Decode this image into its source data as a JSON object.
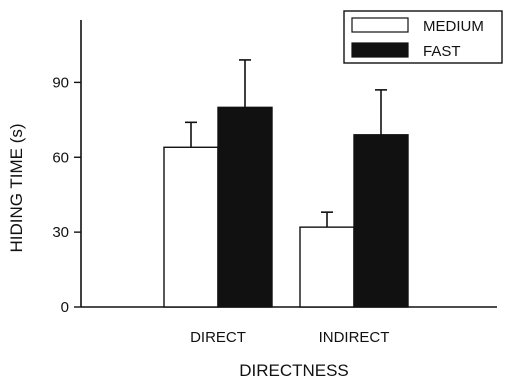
{
  "chart_data": {
    "type": "bar",
    "title": "",
    "xlabel": "DIRECTNESS",
    "ylabel": "HIDING TIME (s)",
    "categories": [
      "DIRECT",
      "INDIRECT"
    ],
    "ylim": [
      0,
      115
    ],
    "yticks": [
      0,
      30,
      60,
      90
    ],
    "yticklabels": [
      "0",
      "30",
      "60",
      "90"
    ],
    "series": [
      {
        "name": "MEDIUM",
        "values": [
          64,
          32
        ],
        "errors": [
          10,
          6
        ],
        "color": "#ffffff"
      },
      {
        "name": "FAST",
        "values": [
          80,
          69
        ],
        "errors": [
          19,
          18
        ],
        "color": "#111111"
      }
    ],
    "legend": {
      "position": "top-right"
    },
    "grid": false
  }
}
